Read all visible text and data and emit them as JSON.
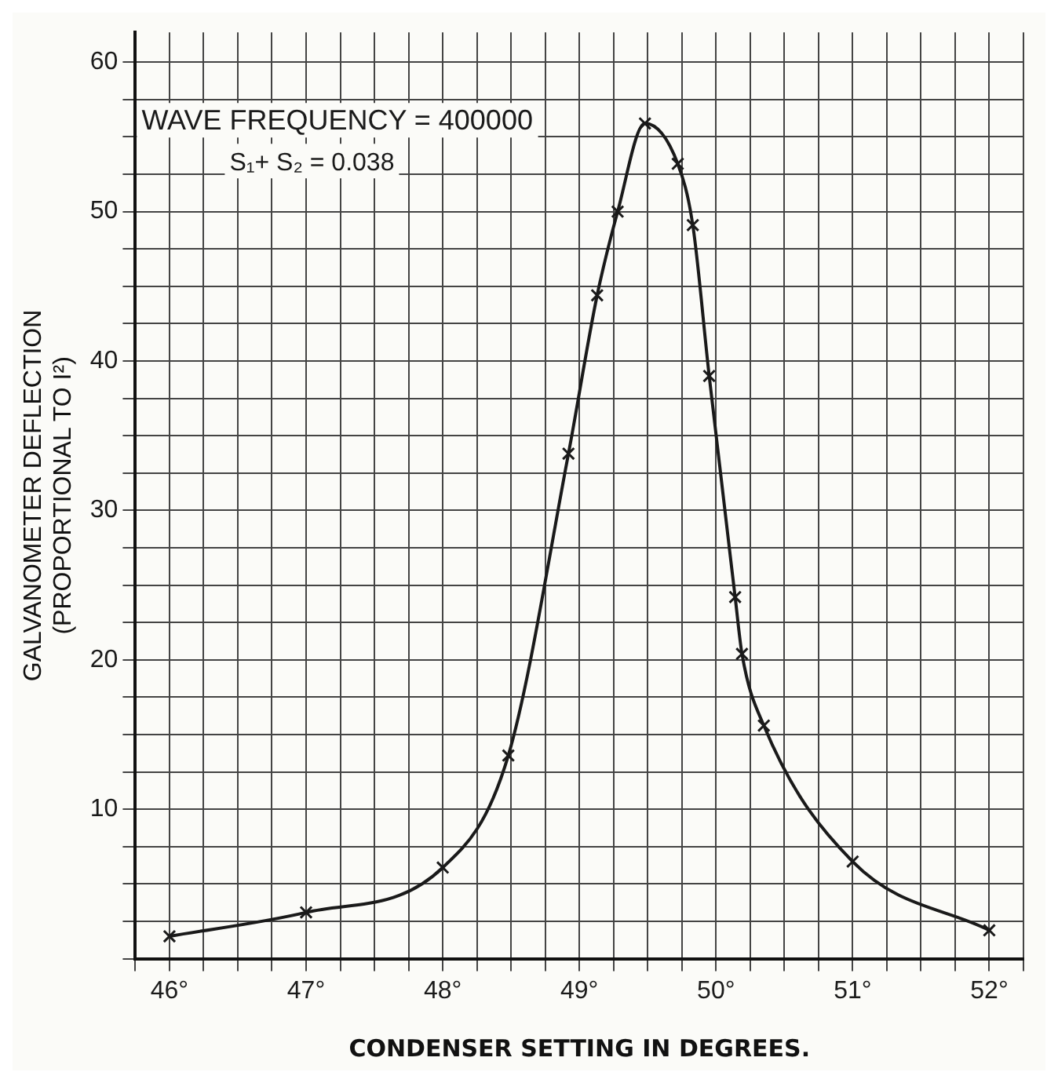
{
  "chart_data": {
    "type": "line",
    "xlabel": "CONDENSER SETTING IN DEGREES.",
    "ylabel": "GALVANOMETER DEFLECTION\n(PROPORTIONAL TO I²)",
    "annotations": [
      "WAVE FREQUENCY = 400000",
      "S₁+ S₂ = 0.038"
    ],
    "series": [
      {
        "color": "#1a1a1a",
        "x": [
          46,
          47,
          48,
          48.48,
          48.92,
          49.13,
          49.28,
          49.48,
          49.72,
          49.83,
          49.95,
          50.14,
          50.19,
          50.35,
          51,
          52
        ],
        "values": [
          1.5,
          3.1,
          6.1,
          13.6,
          33.8,
          44.4,
          50,
          55.9,
          53.2,
          49.1,
          39,
          24.2,
          20.4,
          15.6,
          6.5,
          1.9
        ]
      }
    ],
    "marker": "cross",
    "line_style": "solid",
    "grid": true,
    "legend": false,
    "xlim": [
      45.75,
      52.25
    ],
    "ylim": [
      0,
      62
    ],
    "xticks": [
      {
        "value": 45.75,
        "label": null
      },
      {
        "value": 46,
        "label": "46°"
      },
      {
        "value": 46.25,
        "label": null
      },
      {
        "value": 46.5,
        "label": null
      },
      {
        "value": 46.75,
        "label": null
      },
      {
        "value": 47,
        "label": "47°"
      },
      {
        "value": 47.25,
        "label": null
      },
      {
        "value": 47.5,
        "label": null
      },
      {
        "value": 47.75,
        "label": null
      },
      {
        "value": 48,
        "label": "48°"
      },
      {
        "value": 48.25,
        "label": null
      },
      {
        "value": 48.5,
        "label": null
      },
      {
        "value": 48.75,
        "label": null
      },
      {
        "value": 49,
        "label": "49°"
      },
      {
        "value": 49.25,
        "label": null
      },
      {
        "value": 49.5,
        "label": null
      },
      {
        "value": 49.75,
        "label": null
      },
      {
        "value": 50,
        "label": "50°"
      },
      {
        "value": 50.25,
        "label": null
      },
      {
        "value": 50.5,
        "label": null
      },
      {
        "value": 50.75,
        "label": null
      },
      {
        "value": 51,
        "label": "51°"
      },
      {
        "value": 51.25,
        "label": null
      },
      {
        "value": 51.5,
        "label": null
      },
      {
        "value": 51.75,
        "label": null
      },
      {
        "value": 52,
        "label": "52°"
      },
      {
        "value": 52.25,
        "label": null
      }
    ],
    "yticks": [
      {
        "value": 0,
        "label": null
      },
      {
        "value": 2.5,
        "label": null
      },
      {
        "value": 5,
        "label": null
      },
      {
        "value": 7.5,
        "label": null
      },
      10,
      {
        "value": 12.5,
        "label": null
      },
      {
        "value": 15,
        "label": null
      },
      {
        "value": 17.5,
        "label": null
      },
      20,
      {
        "value": 22.5,
        "label": null
      },
      {
        "value": 25,
        "label": null
      },
      {
        "value": 27.5,
        "label": null
      },
      30,
      {
        "value": 32.5,
        "label": null
      },
      {
        "value": 35,
        "label": null
      },
      {
        "value": 37.5,
        "label": null
      },
      40,
      {
        "value": 42.5,
        "label": null
      },
      {
        "value": 45,
        "label": null
      },
      {
        "value": 47.5,
        "label": null
      },
      50,
      {
        "value": 52.5,
        "label": null
      },
      {
        "value": 55,
        "label": null
      },
      {
        "value": 57.5,
        "label": null
      },
      60
    ]
  }
}
